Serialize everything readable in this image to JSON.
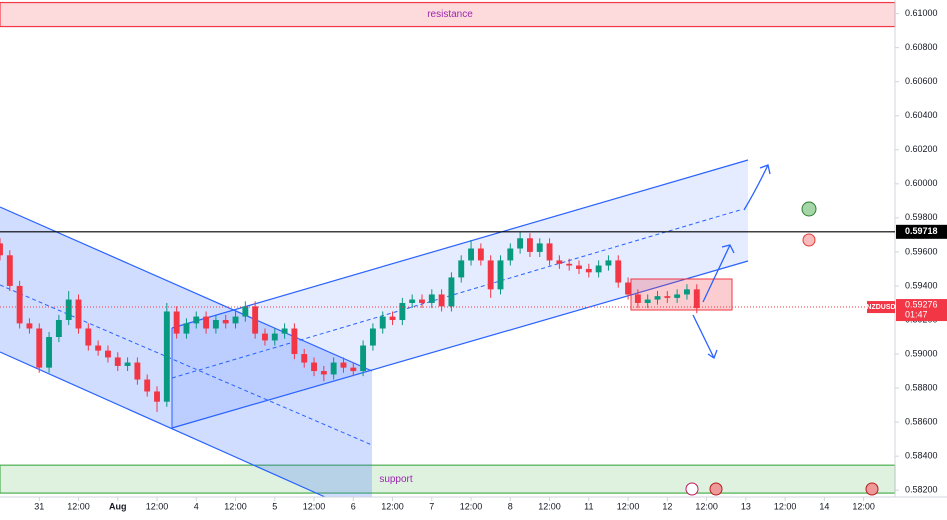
{
  "chart_data": {
    "type": "candlestick",
    "symbol": "NZDUSD",
    "countdown": "01:47",
    "xlim": [
      0,
      22.8
    ],
    "ylim": [
      0.5816,
      0.6108
    ],
    "xticks": [
      {
        "value": 1,
        "label": "31"
      },
      {
        "value": 2,
        "label": "12:00"
      },
      {
        "value": 3,
        "label": "Aug"
      },
      {
        "value": 4,
        "label": "12:00"
      },
      {
        "value": 5,
        "label": "4"
      },
      {
        "value": 6,
        "label": "12:00"
      },
      {
        "value": 7,
        "label": "5"
      },
      {
        "value": 8,
        "label": "12:00"
      },
      {
        "value": 9,
        "label": "6"
      },
      {
        "value": 10,
        "label": "12:00"
      },
      {
        "value": 11,
        "label": "7"
      },
      {
        "value": 12,
        "label": "12:00"
      },
      {
        "value": 13,
        "label": "8"
      },
      {
        "value": 14,
        "label": "12:00"
      },
      {
        "value": 15,
        "label": "11"
      },
      {
        "value": 16,
        "label": "12:00"
      },
      {
        "value": 17,
        "label": "12"
      },
      {
        "value": 18,
        "label": "12:00"
      },
      {
        "value": 19,
        "label": "13"
      },
      {
        "value": 20,
        "label": "12:00"
      },
      {
        "value": 21,
        "label": "14"
      },
      {
        "value": 22,
        "label": "12:00"
      }
    ],
    "yticks": [
      {
        "value": 0.61,
        "label": "0.61000"
      },
      {
        "value": 0.608,
        "label": "0.60800"
      },
      {
        "value": 0.606,
        "label": "0.60600"
      },
      {
        "value": 0.604,
        "label": "0.60400"
      },
      {
        "value": 0.602,
        "label": "0.60200"
      },
      {
        "value": 0.6,
        "label": "0.60000"
      },
      {
        "value": 0.598,
        "label": "0.59800"
      },
      {
        "value": 0.596,
        "label": "0.59600"
      },
      {
        "value": 0.594,
        "label": "0.59400"
      },
      {
        "value": 0.592,
        "label": "0.59200"
      },
      {
        "value": 0.59,
        "label": "0.59000"
      },
      {
        "value": 0.588,
        "label": "0.58800"
      },
      {
        "value": 0.586,
        "label": "0.58600"
      },
      {
        "value": 0.584,
        "label": "0.58400"
      },
      {
        "value": 0.582,
        "label": "0.58200"
      }
    ],
    "up_color": "#089981",
    "down_color": "#f23645",
    "zones": [
      {
        "name": "resistance",
        "low": 0.60924,
        "high": 0.61065,
        "color": "#f23645",
        "text_color": "#9c27b0"
      },
      {
        "name": "support",
        "low": 0.58183,
        "high": 0.58347,
        "color": "#4caf50",
        "text_color": "#9c27b0"
      }
    ],
    "price_line": {
      "value": 0.59718,
      "label": "0.59718"
    },
    "last_price": {
      "value": 0.59276,
      "label": "0.59276"
    },
    "x": [
      0,
      0.25,
      0.5,
      0.75,
      1,
      1.25,
      1.5,
      1.75,
      2,
      2.25,
      2.5,
      2.75,
      3,
      3.25,
      3.5,
      3.75,
      4,
      4.25,
      4.5,
      4.75,
      5,
      5.25,
      5.5,
      5.75,
      6,
      6.25,
      6.5,
      6.75,
      7,
      7.25,
      7.5,
      7.75,
      8,
      8.25,
      8.5,
      8.75,
      9,
      9.25,
      9.5,
      9.75,
      10,
      10.25,
      10.5,
      10.75,
      11,
      11.25,
      11.5,
      11.75,
      12,
      12.25,
      12.5,
      12.75,
      13,
      13.25,
      13.5,
      13.75,
      14,
      14.25,
      14.5,
      14.75,
      15,
      15.25,
      15.5,
      15.75,
      16,
      16.25,
      16.5,
      16.75,
      17,
      17.25,
      17.5,
      17.75
    ],
    "open": [
      0.5965,
      0.5958,
      0.594,
      0.5918,
      0.5915,
      0.5892,
      0.591,
      0.592,
      0.5932,
      0.5915,
      0.5905,
      0.5902,
      0.5898,
      0.5893,
      0.5895,
      0.5885,
      0.5878,
      0.5872,
      0.5925,
      0.5912,
      0.5918,
      0.5922,
      0.5915,
      0.592,
      0.5918,
      0.5922,
      0.5928,
      0.5912,
      0.5908,
      0.5912,
      0.5915,
      0.59,
      0.5895,
      0.589,
      0.5888,
      0.5895,
      0.5892,
      0.589,
      0.5905,
      0.5915,
      0.5922,
      0.592,
      0.593,
      0.5932,
      0.593,
      0.5935,
      0.5928,
      0.5945,
      0.5955,
      0.5962,
      0.5955,
      0.5938,
      0.5955,
      0.5962,
      0.5968,
      0.596,
      0.5965,
      0.5955,
      0.5953,
      0.5952,
      0.595,
      0.5948,
      0.5952,
      0.5955,
      0.5942,
      0.5935,
      0.593,
      0.5932,
      0.5934,
      0.5933,
      0.5935,
      0.5938
    ],
    "high": [
      0.5968,
      0.5961,
      0.5943,
      0.5921,
      0.5918,
      0.5913,
      0.5923,
      0.5937,
      0.5935,
      0.5918,
      0.5908,
      0.5905,
      0.5901,
      0.5898,
      0.5898,
      0.5888,
      0.5881,
      0.593,
      0.5928,
      0.5921,
      0.5925,
      0.5925,
      0.5923,
      0.5923,
      0.5925,
      0.5931,
      0.5931,
      0.5915,
      0.5915,
      0.5918,
      0.5918,
      0.5903,
      0.5898,
      0.5893,
      0.5898,
      0.5898,
      0.5895,
      0.5908,
      0.5918,
      0.5925,
      0.5925,
      0.5933,
      0.5935,
      0.5935,
      0.5938,
      0.5938,
      0.5948,
      0.5958,
      0.5967,
      0.5965,
      0.5958,
      0.5958,
      0.5965,
      0.5972,
      0.5971,
      0.5968,
      0.5968,
      0.5958,
      0.5956,
      0.5955,
      0.5953,
      0.5955,
      0.5958,
      0.5958,
      0.5945,
      0.5938,
      0.5935,
      0.5937,
      0.5937,
      0.5938,
      0.5941,
      0.5941
    ],
    "low": [
      0.5955,
      0.5937,
      0.5915,
      0.5912,
      0.5889,
      0.5889,
      0.5907,
      0.5917,
      0.5912,
      0.5902,
      0.5899,
      0.5895,
      0.589,
      0.589,
      0.5882,
      0.5875,
      0.5866,
      0.5869,
      0.5909,
      0.5909,
      0.5915,
      0.5912,
      0.5912,
      0.5915,
      0.5915,
      0.5919,
      0.5909,
      0.5905,
      0.5905,
      0.5909,
      0.5897,
      0.5892,
      0.5887,
      0.5884,
      0.5885,
      0.5889,
      0.5887,
      0.5887,
      0.5902,
      0.5912,
      0.5917,
      0.5917,
      0.5927,
      0.5927,
      0.5927,
      0.5925,
      0.5925,
      0.5942,
      0.5952,
      0.5952,
      0.5933,
      0.5935,
      0.5952,
      0.5959,
      0.5957,
      0.5957,
      0.5952,
      0.595,
      0.5949,
      0.5947,
      0.5945,
      0.5945,
      0.5949,
      0.5939,
      0.5932,
      0.5927,
      0.5927,
      0.5929,
      0.593,
      0.593,
      0.5932,
      0.5924
    ],
    "close": [
      0.5958,
      0.594,
      0.5918,
      0.5915,
      0.5892,
      0.591,
      0.592,
      0.5932,
      0.5915,
      0.5905,
      0.5902,
      0.5898,
      0.5893,
      0.5895,
      0.5885,
      0.5878,
      0.5872,
      0.5925,
      0.5912,
      0.5918,
      0.5922,
      0.5915,
      0.592,
      0.5918,
      0.5922,
      0.5928,
      0.5912,
      0.5908,
      0.5912,
      0.5915,
      0.59,
      0.5895,
      0.589,
      0.5888,
      0.5895,
      0.5892,
      0.589,
      0.5905,
      0.5915,
      0.5922,
      0.592,
      0.593,
      0.5932,
      0.593,
      0.5935,
      0.5928,
      0.5945,
      0.5955,
      0.5962,
      0.5955,
      0.5938,
      0.5955,
      0.5962,
      0.5968,
      0.596,
      0.5965,
      0.5955,
      0.5953,
      0.5952,
      0.595,
      0.5948,
      0.5952,
      0.5955,
      0.5942,
      0.5935,
      0.593,
      0.5932,
      0.5934,
      0.5933,
      0.5935,
      0.5938,
      0.5927
    ]
  }
}
